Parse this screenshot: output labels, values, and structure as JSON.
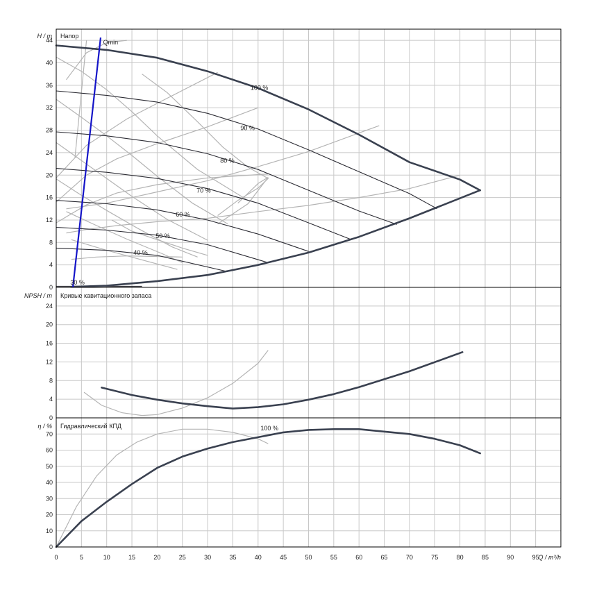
{
  "chart_data": [
    {
      "type": "line",
      "panel": "head",
      "title": "Напор",
      "ylabel": "H / m",
      "xlim": [
        0,
        100
      ],
      "ylim": [
        0,
        46
      ],
      "yticks": [
        0,
        4,
        8,
        12,
        16,
        20,
        24,
        28,
        32,
        36,
        40,
        44
      ],
      "qmin": {
        "label": "Qmin",
        "points": [
          [
            3.3,
            0
          ],
          [
            8.8,
            44.5
          ]
        ]
      },
      "series": [
        {
          "name": "100 %",
          "main": true,
          "x": [
            0,
            10,
            20,
            30,
            40,
            50,
            60,
            70,
            80,
            84
          ],
          "y": [
            43.1,
            42.3,
            40.9,
            38.5,
            35.5,
            31.7,
            27.2,
            22.3,
            19.2,
            17.3
          ]
        },
        {
          "name": "90 %",
          "x": [
            0,
            10,
            20,
            30,
            40,
            50,
            60,
            70,
            75.5
          ],
          "y": [
            35.0,
            34.2,
            33.0,
            31.0,
            28.2,
            24.5,
            20.6,
            16.7,
            14.0
          ]
        },
        {
          "name": "80 %",
          "x": [
            0,
            10,
            20,
            30,
            40,
            50,
            60,
            67.5
          ],
          "y": [
            27.7,
            27.0,
            25.8,
            23.8,
            21.0,
            17.3,
            13.6,
            11.2
          ]
        },
        {
          "name": "70 %",
          "x": [
            0,
            10,
            20,
            30,
            40,
            50,
            58.5
          ],
          "y": [
            21.2,
            20.5,
            19.4,
            17.6,
            15.0,
            11.5,
            8.5
          ]
        },
        {
          "name": "60 %",
          "x": [
            0,
            10,
            20,
            30,
            40,
            50
          ],
          "y": [
            15.5,
            14.9,
            13.8,
            12.0,
            9.5,
            6.4
          ]
        },
        {
          "name": "50 %",
          "x": [
            0,
            10,
            20,
            30,
            42
          ],
          "y": [
            10.7,
            10.2,
            9.3,
            7.6,
            4.4
          ]
        },
        {
          "name": "40 %",
          "x": [
            0,
            10,
            20,
            34
          ],
          "y": [
            7.0,
            6.6,
            5.7,
            2.8
          ]
        },
        {
          "name": "30 %",
          "x": [
            0,
            8,
            17
          ],
          "y": [
            0.2,
            0.2,
            0.2
          ]
        },
        {
          "name": "",
          "main": true,
          "x": [
            3,
            10,
            20,
            30,
            34,
            40,
            50,
            60,
            70,
            84
          ],
          "y": [
            0.1,
            0.3,
            1.1,
            2.2,
            2.9,
            4.0,
            6.2,
            9.0,
            12.3,
            17.3
          ]
        }
      ],
      "faint_series": [
        {
          "x": [
            0,
            5,
            10,
            15,
            20,
            28,
            38
          ],
          "y": [
            41.0,
            38.5,
            35.2,
            31.3,
            27.0,
            21.0,
            15.5
          ]
        },
        {
          "x": [
            0,
            5,
            10,
            15,
            20,
            27,
            34
          ],
          "y": [
            33.5,
            30.3,
            27.0,
            23.5,
            19.8,
            15.0,
            11.3
          ]
        },
        {
          "x": [
            0,
            5,
            10,
            15,
            22,
            30
          ],
          "y": [
            25.8,
            22.6,
            19.4,
            16.2,
            12.1,
            8.4
          ]
        },
        {
          "x": [
            0,
            5,
            10,
            16,
            23,
            28
          ],
          "y": [
            19.3,
            16.4,
            13.7,
            10.6,
            7.2,
            5.4
          ]
        },
        {
          "x": [
            2,
            8,
            14,
            21,
            25
          ],
          "y": [
            13.5,
            11.0,
            8.6,
            6.0,
            4.4
          ]
        },
        {
          "x": [
            3,
            10,
            17,
            24
          ],
          "y": [
            8.5,
            6.6,
            4.9,
            3.2
          ]
        },
        {
          "x": [
            3,
            8,
            14,
            25
          ],
          "y": [
            5.0,
            5.4,
            5.6,
            5.4
          ]
        },
        {
          "x": [
            0,
            6,
            12,
            20,
            30,
            42
          ],
          "y": [
            11.5,
            14.7,
            16.8,
            18.3,
            19.5,
            20.2
          ]
        },
        {
          "x": [
            0,
            6,
            12,
            20,
            30,
            40
          ],
          "y": [
            15.2,
            20.0,
            22.9,
            25.6,
            28.6,
            32.0
          ]
        },
        {
          "x": [
            0,
            6,
            14,
            22,
            32
          ],
          "y": [
            19.5,
            25.3,
            30.0,
            33.7,
            38.3
          ]
        },
        {
          "x": [
            2,
            6,
            12,
            20,
            30,
            40,
            50,
            60,
            70,
            80
          ],
          "y": [
            9.7,
            10.3,
            11.0,
            11.7,
            12.3,
            13.5,
            14.6,
            16.0,
            17.6,
            20.0
          ]
        },
        {
          "x": [
            2,
            10,
            20,
            30,
            40,
            50,
            60,
            64
          ],
          "y": [
            14.0,
            15.0,
            17.0,
            19.0,
            21.5,
            24.2,
            27.5,
            28.8
          ]
        },
        {
          "x": [
            2,
            6,
            10,
            14
          ],
          "y": [
            37.0,
            41.8,
            43.6,
            44.0
          ]
        },
        {
          "x": [
            17,
            22,
            28,
            33,
            38,
            42,
            40,
            36,
            32
          ],
          "y": [
            38.0,
            34.7,
            29.5,
            25.0,
            21.4,
            19.4,
            17.7,
            15.5,
            12.8
          ]
        },
        {
          "x": [
            32,
            38,
            42,
            40,
            36
          ],
          "y": [
            11.3,
            14.9,
            19.6,
            18.5,
            15.0
          ]
        },
        {
          "x": [
            11,
            15,
            20,
            25,
            30
          ],
          "y": [
            12.0,
            10.0,
            8.5,
            7.0,
            5.7
          ]
        },
        {
          "x": [
            3.7,
            4.8,
            6.0
          ],
          "y": [
            23.0,
            33.0,
            44.0
          ]
        }
      ],
      "annotations": [
        {
          "text": "100 %",
          "x": 38.5,
          "y": 35.2
        },
        {
          "text": "90 %",
          "x": 36.5,
          "y": 28.0
        },
        {
          "text": "80 %",
          "x": 32.5,
          "y": 22.2
        },
        {
          "text": "70 %",
          "x": 27.8,
          "y": 16.9
        },
        {
          "text": "60 %",
          "x": 23.7,
          "y": 12.6
        },
        {
          "text": "50 %",
          "x": 19.7,
          "y": 8.8
        },
        {
          "text": "40 %",
          "x": 15.3,
          "y": 5.8
        },
        {
          "text": "30 %",
          "x": 2.8,
          "y": 0.5
        },
        {
          "text": "Qmin",
          "x": 9.3,
          "y": 43.3
        }
      ]
    },
    {
      "type": "line",
      "panel": "npsh",
      "title": "Кривые кавитационного запаса",
      "ylabel": "NPSH / m",
      "xlim": [
        0,
        100
      ],
      "ylim": [
        0,
        28
      ],
      "yticks": [
        0,
        4,
        8,
        12,
        16,
        20,
        24
      ],
      "series": [
        {
          "name": "",
          "main": true,
          "x": [
            9,
            15,
            20,
            25,
            30,
            35,
            40,
            45,
            50,
            55,
            60,
            70,
            80.5
          ],
          "y": [
            6.5,
            4.9,
            3.9,
            3.1,
            2.5,
            2.0,
            2.3,
            2.9,
            3.9,
            5.1,
            6.6,
            10.0,
            14.1
          ]
        }
      ],
      "faint_series": [
        {
          "x": [
            5.5,
            9,
            13,
            17,
            20,
            25,
            30,
            35,
            40,
            42
          ],
          "y": [
            5.5,
            2.7,
            1.1,
            0.5,
            0.7,
            2.1,
            4.3,
            7.4,
            11.7,
            14.5
          ]
        }
      ]
    },
    {
      "type": "line",
      "panel": "efficiency",
      "title": "Гидравлический КПД",
      "ylabel": "η / %",
      "xlabel": "Q / m³/h",
      "xlim": [
        0,
        100
      ],
      "ylim": [
        0,
        80
      ],
      "xticks": [
        0,
        5,
        10,
        15,
        20,
        25,
        30,
        35,
        40,
        45,
        50,
        55,
        60,
        65,
        70,
        75,
        80,
        85,
        90,
        95
      ],
      "yticks": [
        0,
        10,
        20,
        30,
        40,
        50,
        60,
        70
      ],
      "series": [
        {
          "name": "100 %",
          "main": true,
          "x": [
            0,
            5,
            10,
            15,
            20,
            25,
            30,
            35,
            40,
            45,
            50,
            55,
            60,
            65,
            70,
            75,
            80,
            84
          ],
          "y": [
            0,
            16,
            28,
            39,
            49,
            56,
            61,
            65,
            68,
            71,
            72.5,
            73,
            73,
            71.5,
            70,
            67,
            63,
            58
          ]
        }
      ],
      "faint_series": [
        {
          "x": [
            0,
            4,
            8,
            12,
            16,
            20,
            25,
            30,
            35,
            40,
            42
          ],
          "y": [
            0,
            25,
            44,
            57,
            65,
            70,
            73,
            73,
            71,
            67,
            64
          ]
        }
      ],
      "annotations": [
        {
          "text": "100 %",
          "x": 40.5,
          "y": 72.2
        }
      ]
    }
  ],
  "colors": {
    "main_curve": "#3a4150",
    "partial_curve": "#2b2b33",
    "faint_curve": "#b4b4b4",
    "qmin_line": "#1515c8",
    "grid": "#c8c8c8"
  }
}
